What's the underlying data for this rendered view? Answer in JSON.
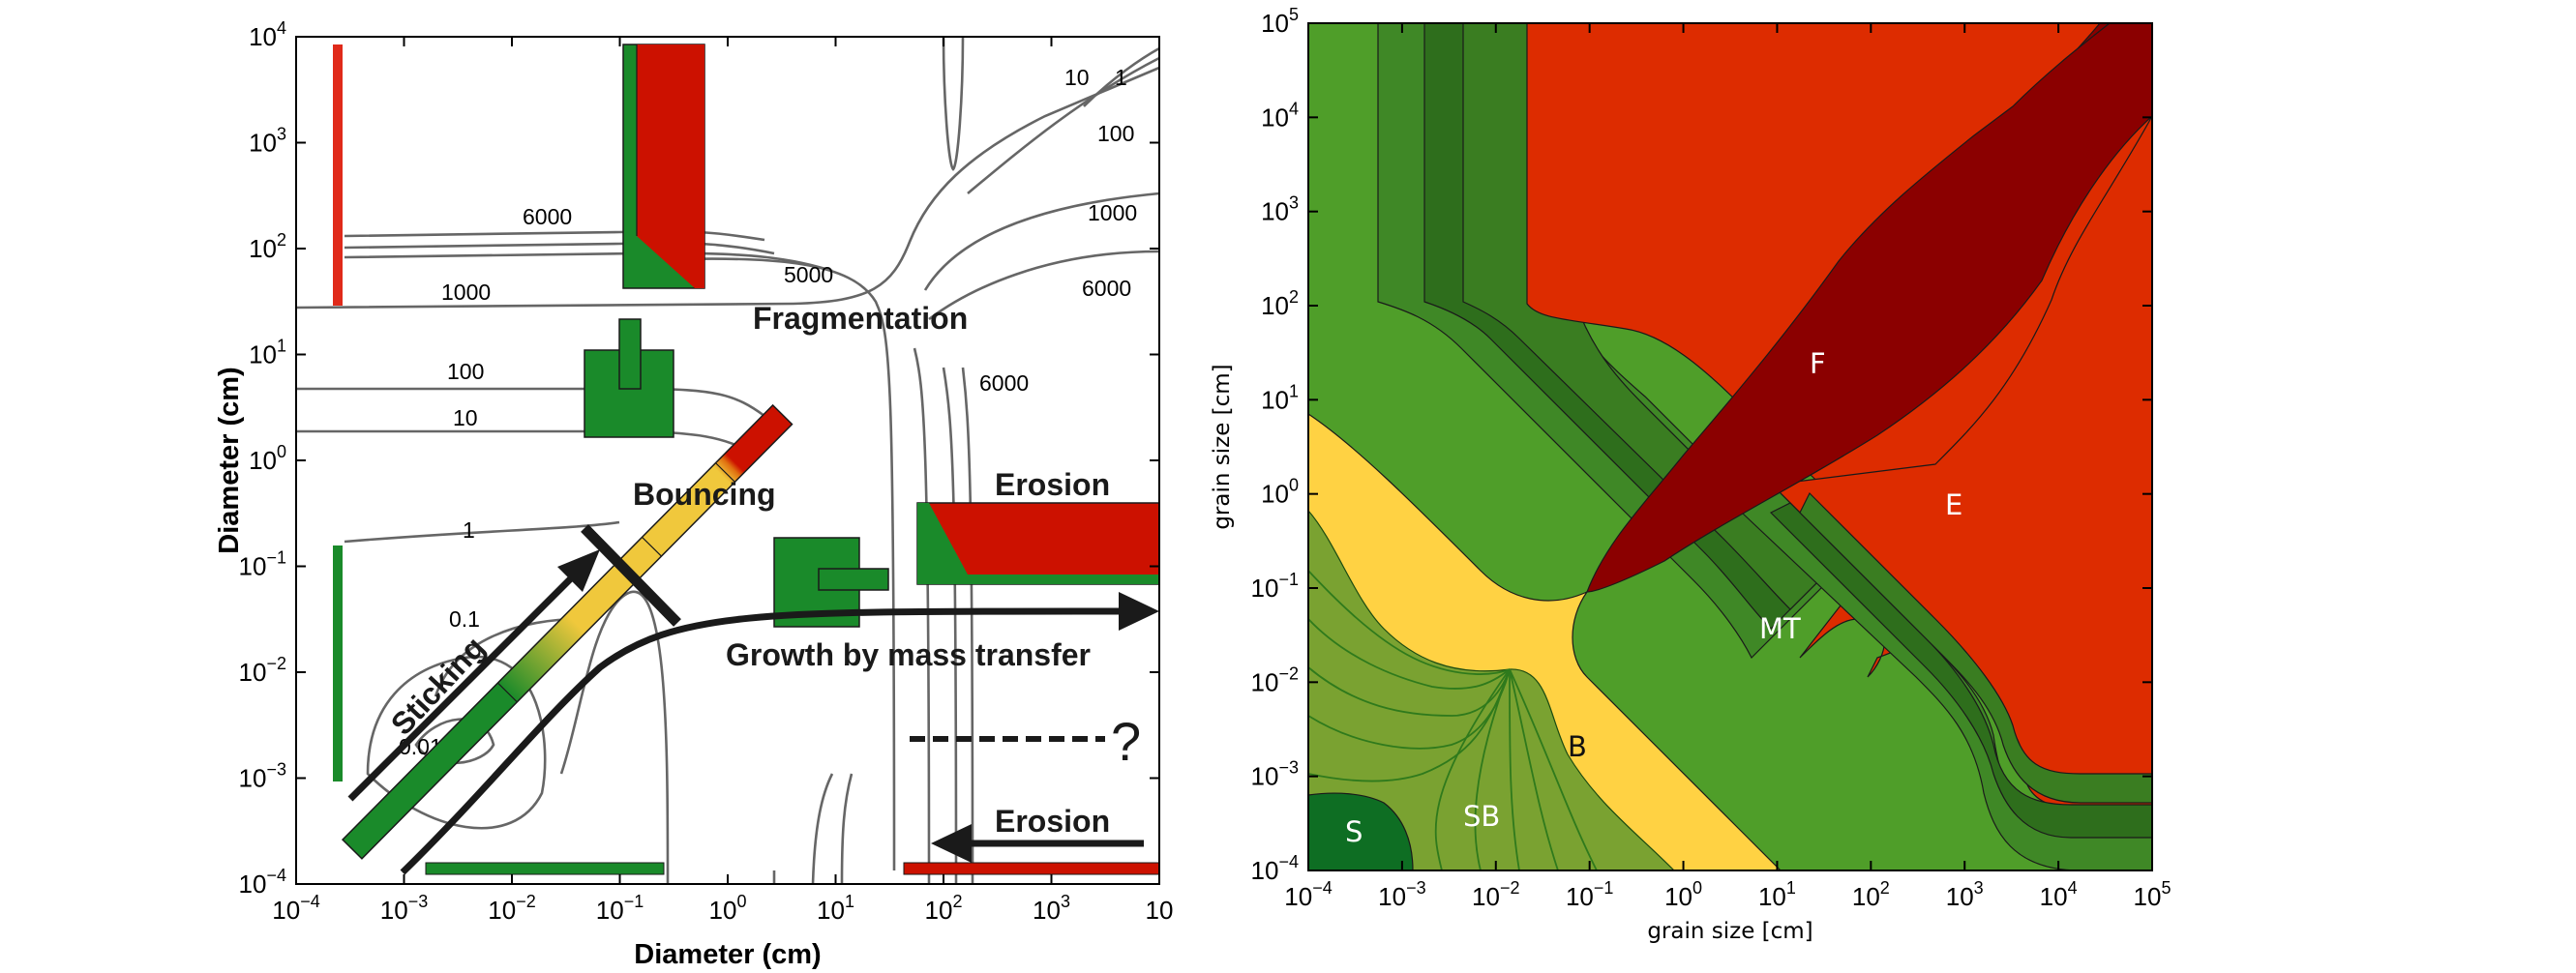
{
  "left_panel": {
    "xlabel": "Diameter (cm)",
    "ylabel": "Diameter (cm)",
    "x_ticks": [
      {
        "base": "10",
        "exp": "−4"
      },
      {
        "base": "10",
        "exp": "−3"
      },
      {
        "base": "10",
        "exp": "−2"
      },
      {
        "base": "10",
        "exp": "−1"
      },
      {
        "base": "10",
        "exp": "0"
      },
      {
        "base": "10",
        "exp": "1"
      },
      {
        "base": "10",
        "exp": "2"
      },
      {
        "base": "10",
        "exp": "3"
      },
      {
        "base": "10",
        "exp": ""
      }
    ],
    "y_ticks": [
      {
        "base": "10",
        "exp": "−4"
      },
      {
        "base": "10",
        "exp": "−3"
      },
      {
        "base": "10",
        "exp": "−2"
      },
      {
        "base": "10",
        "exp": "−1"
      },
      {
        "base": "10",
        "exp": "0"
      },
      {
        "base": "10",
        "exp": "1"
      },
      {
        "base": "10",
        "exp": "2"
      },
      {
        "base": "10",
        "exp": "3"
      },
      {
        "base": "10",
        "exp": "4"
      }
    ],
    "contour_labels": [
      "6000",
      "1000",
      "5000",
      "10",
      "1",
      "100",
      "1000",
      "6000",
      "100",
      "10",
      "1",
      "0.1",
      "0.01",
      "6000"
    ],
    "regimes": {
      "fragmentation": "Fragmentation",
      "bouncing": "Bouncing",
      "erosion_top": "Erosion",
      "erosion_bottom": "Erosion",
      "sticking": "Sticking",
      "growth": "Growth by mass transfer",
      "question": "?"
    },
    "colors": {
      "green": "#1a8a2a",
      "red": "#cc1100",
      "yellow": "#f0c83c",
      "contour": "#666666"
    }
  },
  "right_panel": {
    "xlabel": "grain size [cm]",
    "ylabel": "grain size [cm]",
    "x_ticks": [
      {
        "base": "10",
        "exp": "−4"
      },
      {
        "base": "10",
        "exp": "−3"
      },
      {
        "base": "10",
        "exp": "−2"
      },
      {
        "base": "10",
        "exp": "−1"
      },
      {
        "base": "10",
        "exp": "0"
      },
      {
        "base": "10",
        "exp": "1"
      },
      {
        "base": "10",
        "exp": "2"
      },
      {
        "base": "10",
        "exp": "3"
      },
      {
        "base": "10",
        "exp": "4"
      },
      {
        "base": "10",
        "exp": "5"
      }
    ],
    "y_ticks": [
      {
        "base": "10",
        "exp": "−4"
      },
      {
        "base": "10",
        "exp": "−3"
      },
      {
        "base": "10",
        "exp": "−2"
      },
      {
        "base": "10",
        "exp": "−1"
      },
      {
        "base": "10",
        "exp": "0"
      },
      {
        "base": "10",
        "exp": "1"
      },
      {
        "base": "10",
        "exp": "2"
      },
      {
        "base": "10",
        "exp": "3"
      },
      {
        "base": "10",
        "exp": "4"
      },
      {
        "base": "10",
        "exp": "5"
      }
    ],
    "zones": {
      "S": "S",
      "SB": "SB",
      "B": "B",
      "MT": "MT",
      "F": "F",
      "E": "E"
    },
    "colors": {
      "green": "#4f9e29",
      "dark_green": "#0e6e23",
      "olive": "#7aa231",
      "yellow": "#ffd243",
      "red": "#dd2c00",
      "dark_red": "#8b0000",
      "band1": "#3f8826",
      "band2": "#2e6e1c"
    }
  }
}
